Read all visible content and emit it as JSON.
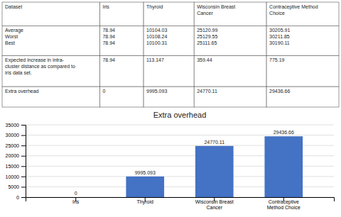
{
  "chart_data": [
    {
      "type": "table",
      "headers": [
        "Dataset",
        "Iris",
        "Thyroid",
        "Wisconsin Breast\nCancer",
        "Contraceptive Method\nChoice"
      ],
      "rows": [
        [
          "Average\nWorst\nBest",
          "78.94\n78.94\n78.94",
          "10104.03\n10108.24\n10100.31",
          "25120.99\n25129.55\n25111.65",
          "30205.91\n30211.85\n30190.11"
        ],
        [
          "Expected  increase  in  intra-\ncluster distance as compared to\niris data set.",
          "78.94",
          "113.147",
          "359.44",
          "775.19"
        ],
        [
          "Extra overhead",
          "0",
          "9995.093",
          "24770.11",
          "29436.66"
        ]
      ]
    },
    {
      "type": "bar",
      "title": "Extra overhead",
      "categories": [
        "Iris",
        "Thyroid",
        "Wisconsin Breast\nCancer",
        "Contraceptive\nMethod Choice"
      ],
      "values": [
        0,
        9995.093,
        24770.11,
        29436.66
      ],
      "color": "#4472C4",
      "ylim": [
        0,
        35000
      ],
      "yticks": [
        0,
        5000,
        10000,
        15000,
        20000,
        25000,
        30000,
        35000
      ],
      "grid": true,
      "data_labels": true
    }
  ]
}
